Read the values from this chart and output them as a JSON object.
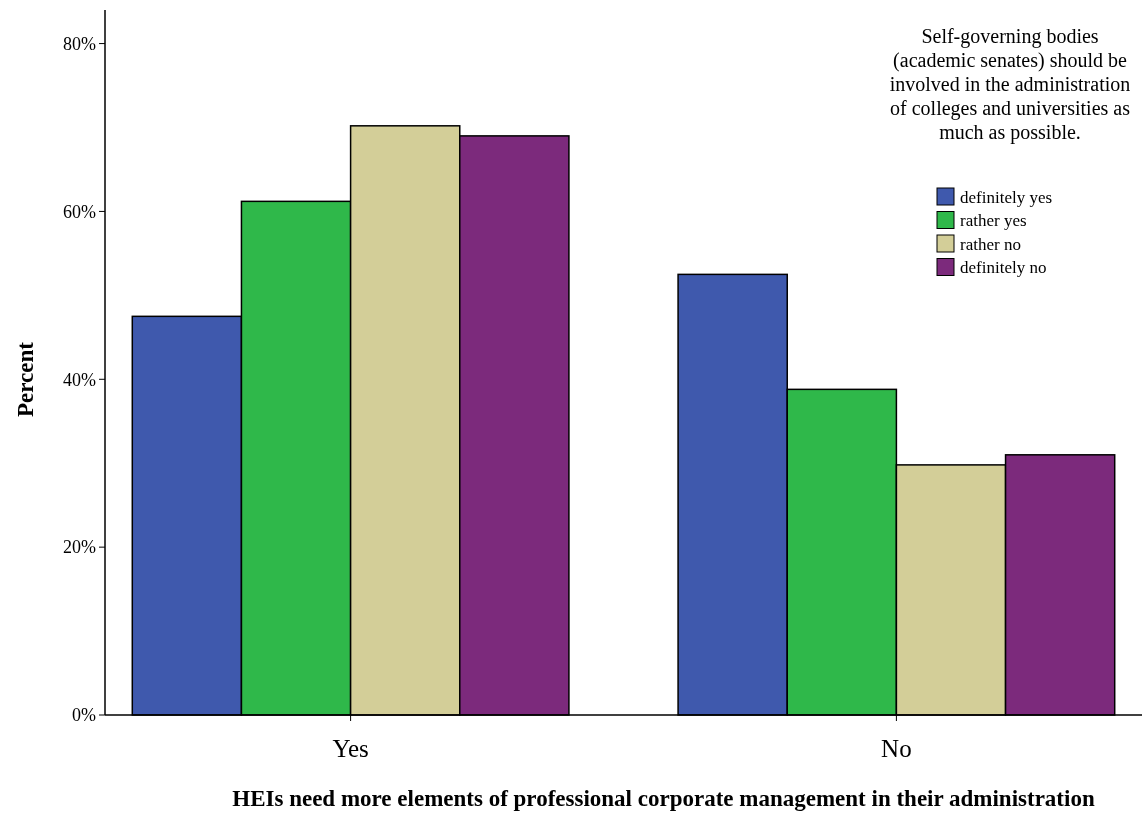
{
  "chart_data": {
    "type": "bar",
    "xlabel": "HEIs need more elements of professional corporate management in their administration",
    "ylabel": "Percent",
    "legend_title": "Self-governing bodies (academic senates) should be involved in the administration of colleges and universities as much as possible.",
    "categories": [
      "Yes",
      "No"
    ],
    "series": [
      {
        "name": "definitely yes",
        "color": "#3f59ad",
        "values": [
          47.5,
          52.5
        ]
      },
      {
        "name": "rather yes",
        "color": "#2fb84a",
        "values": [
          61.2,
          38.8
        ]
      },
      {
        "name": "rather no",
        "color": "#d3ce98",
        "values": [
          70.2,
          29.8
        ]
      },
      {
        "name": "definitely no",
        "color": "#7c2a7c",
        "values": [
          69.0,
          31.0
        ]
      }
    ],
    "ylim": [
      0,
      84
    ],
    "yticks": [
      {
        "value": 0,
        "label": "0%"
      },
      {
        "value": 20,
        "label": "20%"
      },
      {
        "value": 40,
        "label": "40%"
      },
      {
        "value": 60,
        "label": "60%"
      },
      {
        "value": 80,
        "label": "80%"
      }
    ],
    "grid": false,
    "legend": "top right"
  }
}
